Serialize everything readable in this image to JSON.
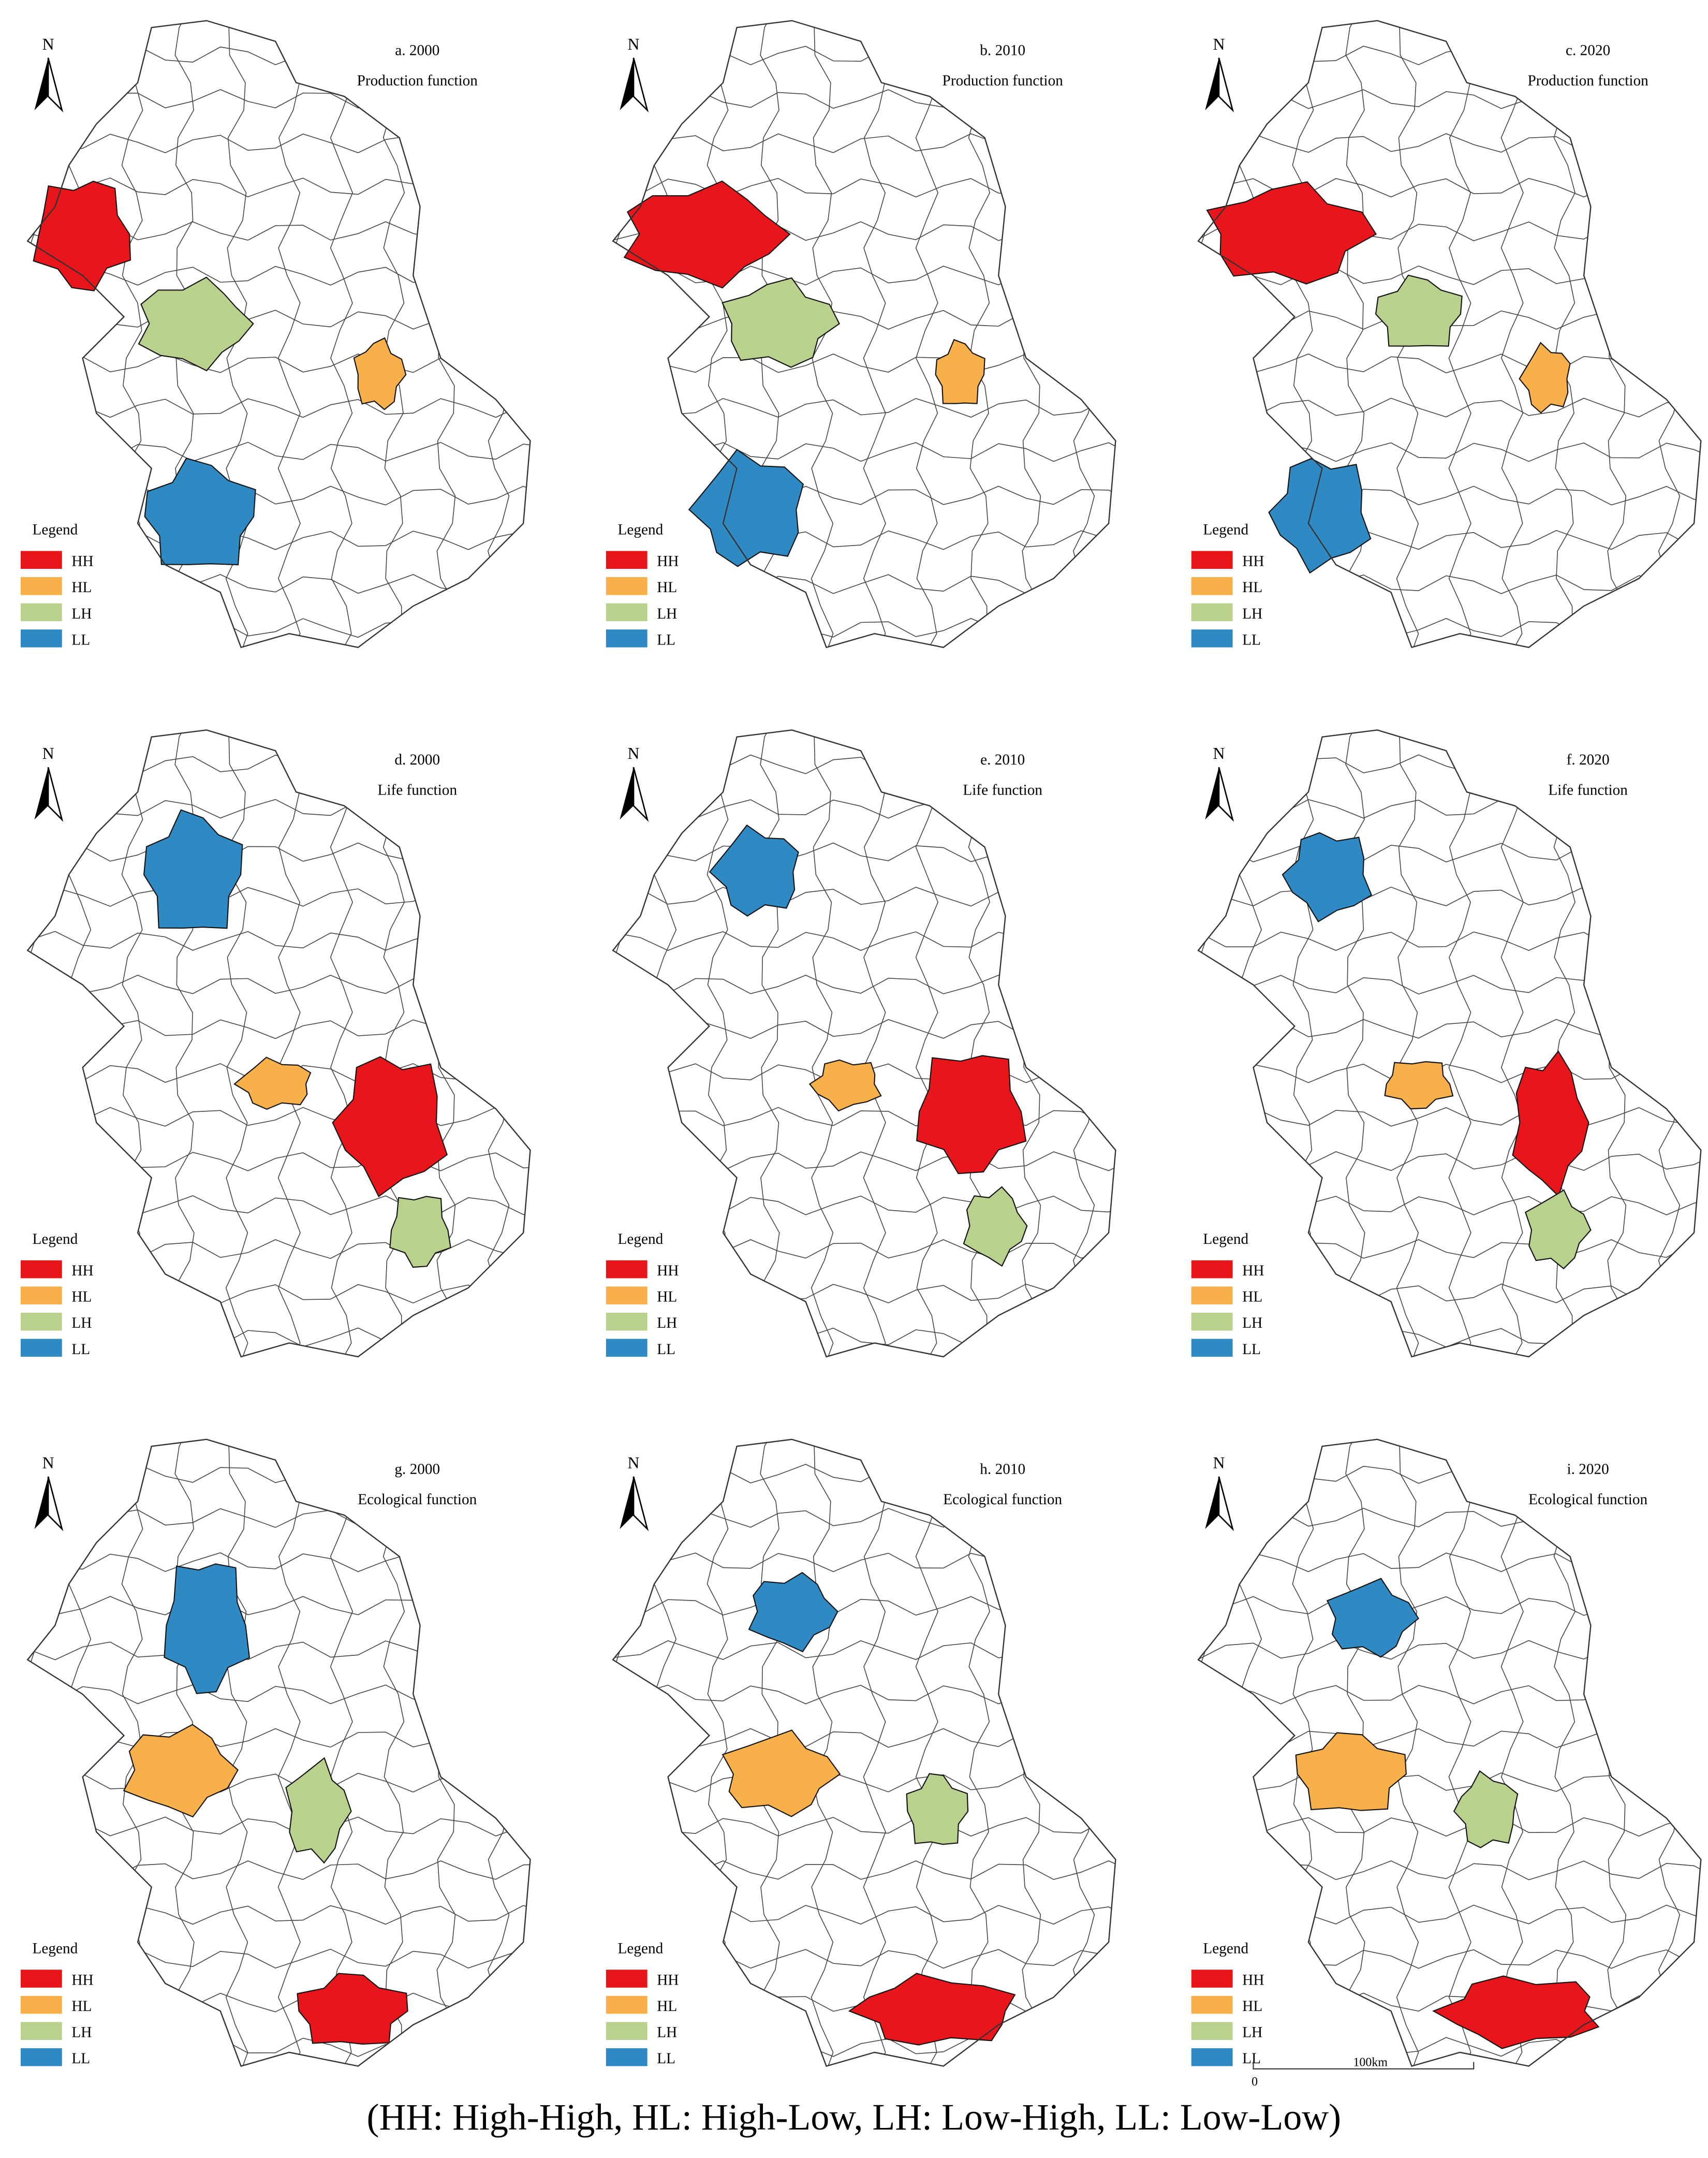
{
  "panels": [
    {
      "label": "a. 2000",
      "function": "Production function",
      "north": "N",
      "legend": {
        "title": "Legend",
        "items": [
          {
            "label": "HH",
            "color": "#e8161b"
          },
          {
            "label": "HL",
            "color": "#f8b04a"
          },
          {
            "label": "LH",
            "color": "#b8d18c"
          },
          {
            "label": "LL",
            "color": "#2f8ac4"
          }
        ]
      }
    },
    {
      "label": "b. 2010",
      "function": "Production function",
      "north": "N",
      "legend": {
        "title": "Legend",
        "items": [
          {
            "label": "HH",
            "color": "#e8161b"
          },
          {
            "label": "HL",
            "color": "#f8b04a"
          },
          {
            "label": "LH",
            "color": "#b8d18c"
          },
          {
            "label": "LL",
            "color": "#2f8ac4"
          }
        ]
      }
    },
    {
      "label": "c. 2020",
      "function": "Production function",
      "north": "N",
      "legend": {
        "title": "Legend",
        "items": [
          {
            "label": "HH",
            "color": "#e8161b"
          },
          {
            "label": "HL",
            "color": "#f8b04a"
          },
          {
            "label": "LH",
            "color": "#b8d18c"
          },
          {
            "label": "LL",
            "color": "#2f8ac4"
          }
        ]
      }
    },
    {
      "label": "d. 2000",
      "function": "Life function",
      "north": "N",
      "legend": {
        "title": "Legend",
        "items": [
          {
            "label": "HH",
            "color": "#e8161b"
          },
          {
            "label": "HL",
            "color": "#f8b04a"
          },
          {
            "label": "LH",
            "color": "#b8d18c"
          },
          {
            "label": "LL",
            "color": "#2f8ac4"
          }
        ]
      }
    },
    {
      "label": "e. 2010",
      "function": "Life function",
      "north": "N",
      "legend": {
        "title": "Legend",
        "items": [
          {
            "label": "HH",
            "color": "#e8161b"
          },
          {
            "label": "HL",
            "color": "#f8b04a"
          },
          {
            "label": "LH",
            "color": "#b8d18c"
          },
          {
            "label": "LL",
            "color": "#2f8ac4"
          }
        ]
      }
    },
    {
      "label": "f. 2020",
      "function": "Life function",
      "north": "N",
      "legend": {
        "title": "Legend",
        "items": [
          {
            "label": "HH",
            "color": "#e8161b"
          },
          {
            "label": "HL",
            "color": "#f8b04a"
          },
          {
            "label": "LH",
            "color": "#b8d18c"
          },
          {
            "label": "LL",
            "color": "#2f8ac4"
          }
        ]
      }
    },
    {
      "label": "g. 2000",
      "function": "Ecological function",
      "north": "N",
      "legend": {
        "title": "Legend",
        "items": [
          {
            "label": "HH",
            "color": "#e8161b"
          },
          {
            "label": "HL",
            "color": "#f8b04a"
          },
          {
            "label": "LH",
            "color": "#b8d18c"
          },
          {
            "label": "LL",
            "color": "#2f8ac4"
          }
        ]
      }
    },
    {
      "label": "h. 2010",
      "function": "Ecological function",
      "north": "N",
      "legend": {
        "title": "Legend",
        "items": [
          {
            "label": "HH",
            "color": "#e8161b"
          },
          {
            "label": "HL",
            "color": "#f8b04a"
          },
          {
            "label": "LH",
            "color": "#b8d18c"
          },
          {
            "label": "LL",
            "color": "#2f8ac4"
          }
        ]
      }
    },
    {
      "label": "i. 2020",
      "function": "Ecological function",
      "north": "N",
      "legend": {
        "title": "Legend",
        "items": [
          {
            "label": "HH",
            "color": "#e8161b"
          },
          {
            "label": "HL",
            "color": "#f8b04a"
          },
          {
            "label": "LH",
            "color": "#b8d18c"
          },
          {
            "label": "LL",
            "color": "#2f8ac4"
          }
        ]
      }
    }
  ],
  "scale_bar": {
    "start": "0",
    "end": "100km"
  },
  "caption": "(HH: High-High, HL: High-Low, LH: Low-High, LL: Low-Low)"
}
